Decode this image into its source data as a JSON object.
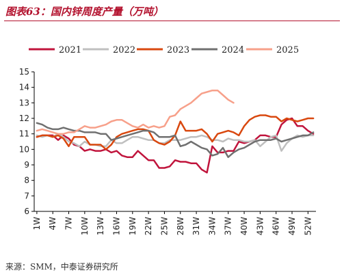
{
  "header": {
    "title": "图表63：国内锌周度产量（万吨）"
  },
  "footer": {
    "source": "来源：SMM，中泰证券研究所"
  },
  "chart_data": {
    "type": "line",
    "title": "",
    "xlabel": "",
    "ylabel": "",
    "ylim": [
      6,
      15
    ],
    "yticks": [
      6,
      7,
      8,
      9,
      10,
      11,
      12,
      13,
      14,
      15
    ],
    "xticks": [
      "1W",
      "4W",
      "7W",
      "10W",
      "13W",
      "16W",
      "19W",
      "22W",
      "25W",
      "28W",
      "31W",
      "34W",
      "37W",
      "40W",
      "43W",
      "46W",
      "49W",
      "52W"
    ],
    "grid": false,
    "legend_position": "top",
    "colors": {
      "2021": "#c0143c",
      "2022": "#bfbfbf",
      "2023": "#d9480f",
      "2024": "#707070",
      "2025": "#f7a08a"
    },
    "series": [
      {
        "name": "2021",
        "values": [
          10.8,
          10.9,
          10.9,
          10.9,
          10.6,
          10.9,
          10.7,
          10.3,
          10.2,
          9.9,
          10.0,
          9.9,
          9.9,
          10.0,
          9.8,
          9.9,
          9.6,
          9.5,
          9.5,
          9.9,
          9.6,
          9.3,
          9.3,
          8.8,
          8.8,
          8.9,
          9.3,
          9.2,
          9.2,
          9.1,
          9.1,
          8.7,
          8.5,
          10.2,
          9.8,
          9.8,
          9.9,
          9.9,
          10.5,
          10.4,
          10.5,
          10.6,
          10.9,
          10.9,
          10.8,
          10.8,
          11.6,
          11.9,
          12.0,
          11.5,
          11.5,
          11.2,
          11.0
        ]
      },
      {
        "name": "2022",
        "values": [
          10.9,
          10.8,
          10.9,
          10.8,
          11.0,
          10.8,
          10.5,
          10.4,
          10.2,
          10.5,
          10.3,
          10.3,
          10.2,
          10.2,
          10.6,
          10.4,
          10.4,
          10.6,
          10.8,
          10.8,
          10.7,
          10.6,
          10.6,
          10.4,
          10.4,
          10.6,
          10.6,
          10.6,
          10.7,
          10.8,
          10.8,
          10.9,
          10.8,
          10.6,
          10.6,
          10.5,
          10.7,
          10.6,
          10.6,
          10.5,
          10.5,
          10.6,
          10.2,
          10.5,
          10.8,
          10.9,
          9.9,
          10.4,
          10.7,
          10.9,
          10.8,
          10.9,
          10.9
        ]
      },
      {
        "name": "2023",
        "values": [
          10.8,
          10.9,
          10.9,
          10.8,
          10.9,
          10.7,
          10.2,
          10.8,
          10.8,
          10.8,
          10.3,
          10.3,
          10.3,
          10.0,
          10.3,
          10.8,
          11.0,
          11.1,
          11.2,
          11.3,
          11.3,
          11.2,
          10.6,
          10.4,
          10.3,
          10.5,
          10.9,
          11.8,
          11.2,
          11.2,
          11.2,
          11.3,
          11.0,
          10.5,
          11.0,
          11.1,
          11.2,
          11.1,
          10.9,
          11.5,
          11.9,
          12.1,
          12.2,
          12.2,
          12.1,
          12.1,
          11.8,
          12.0,
          11.9,
          11.8,
          11.9,
          12.0,
          12.0
        ]
      },
      {
        "name": "2024",
        "values": [
          11.7,
          11.6,
          11.4,
          11.3,
          11.3,
          11.4,
          11.3,
          11.2,
          11.2,
          11.1,
          11.1,
          11.1,
          11.0,
          11.0,
          10.6,
          10.7,
          10.8,
          10.9,
          11.0,
          11.1,
          11.2,
          11.2,
          11.1,
          10.8,
          10.8,
          10.8,
          10.9,
          10.2,
          10.3,
          10.5,
          10.3,
          10.1,
          10.0,
          9.6,
          9.7,
          10.1,
          9.5,
          9.8,
          10.0,
          10.1,
          10.3,
          10.5,
          10.6,
          10.6,
          10.6,
          10.7,
          10.5,
          10.6,
          10.7,
          10.8,
          10.9,
          10.9,
          11.1
        ]
      },
      {
        "name": "2025",
        "values": [
          11.2,
          11.3,
          11.2,
          11.1,
          11.0,
          11.0,
          11.1,
          11.1,
          11.3,
          11.5,
          11.4,
          11.4,
          11.5,
          11.6,
          11.8,
          11.9,
          11.9,
          11.7,
          11.5,
          11.4,
          11.6,
          11.4,
          11.5,
          11.4,
          11.5,
          12.1,
          12.2,
          12.6,
          12.8,
          13.0,
          13.3,
          13.6,
          13.7,
          13.8,
          13.8,
          13.5,
          13.2,
          13.0
        ]
      }
    ]
  }
}
